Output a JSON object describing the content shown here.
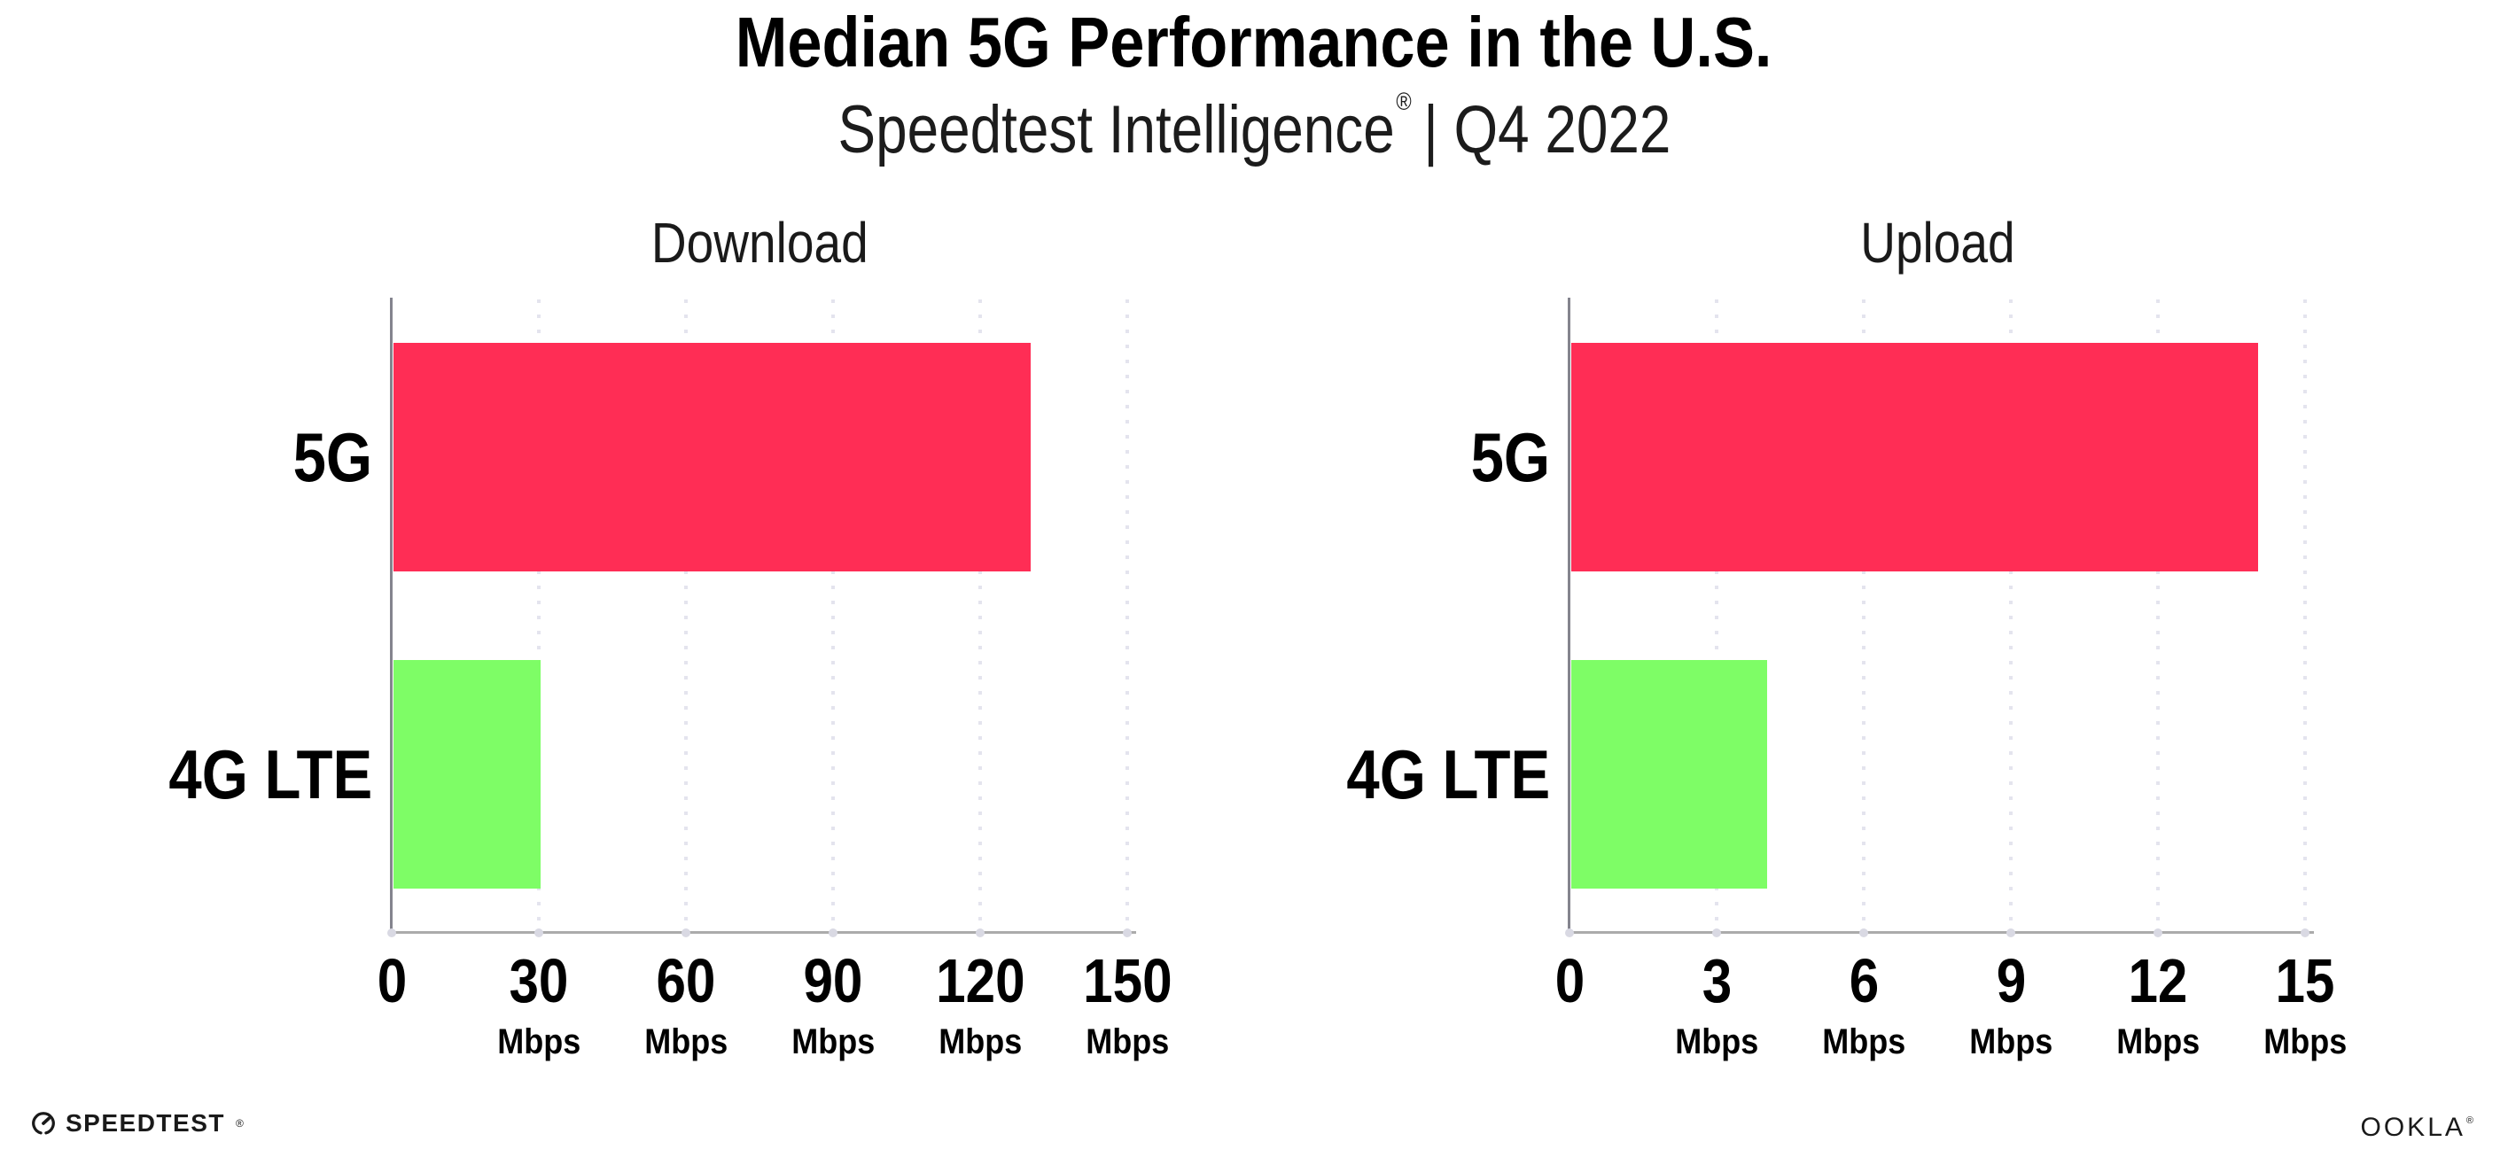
{
  "header": {
    "title": "Median 5G Performance in the U.S.",
    "subtitle": {
      "brand": "Speedtest Intelligence",
      "mark": "®",
      "rest": "| Q4 2022"
    }
  },
  "chart_data": [
    {
      "type": "bar",
      "orientation": "horizontal",
      "title": "Download",
      "categories": [
        "5G",
        "4G LTE"
      ],
      "values": [
        130,
        30
      ],
      "unit": "Mbps",
      "xlim": [
        0,
        150
      ],
      "xticks": [
        0,
        30,
        60,
        90,
        120,
        150
      ],
      "bar_colors": [
        "#FF2D55",
        "#7EFD66"
      ],
      "grid": "dotted-vertical",
      "legend": "none"
    },
    {
      "type": "bar",
      "orientation": "horizontal",
      "title": "Upload",
      "categories": [
        "5G",
        "4G LTE"
      ],
      "values": [
        14,
        4
      ],
      "unit": "Mbps",
      "xlim": [
        0,
        15
      ],
      "xticks": [
        0,
        3,
        6,
        9,
        12,
        15
      ],
      "bar_colors": [
        "#FF2D55",
        "#7EFD66"
      ],
      "grid": "dotted-vertical",
      "legend": "none"
    }
  ],
  "footer": {
    "speedtest_logo_text": "SPEEDTEST",
    "speedtest_mark": "®",
    "ookla_logo_text": "OOKLA",
    "ookla_mark": "®"
  },
  "colors": {
    "bar_5g": "#FF2D55",
    "bar_4g_lte": "#7EFD66",
    "gridline": "#e4e4ee",
    "y_axis": "#84848e",
    "x_axis": "#ababab",
    "text": "#111111"
  }
}
